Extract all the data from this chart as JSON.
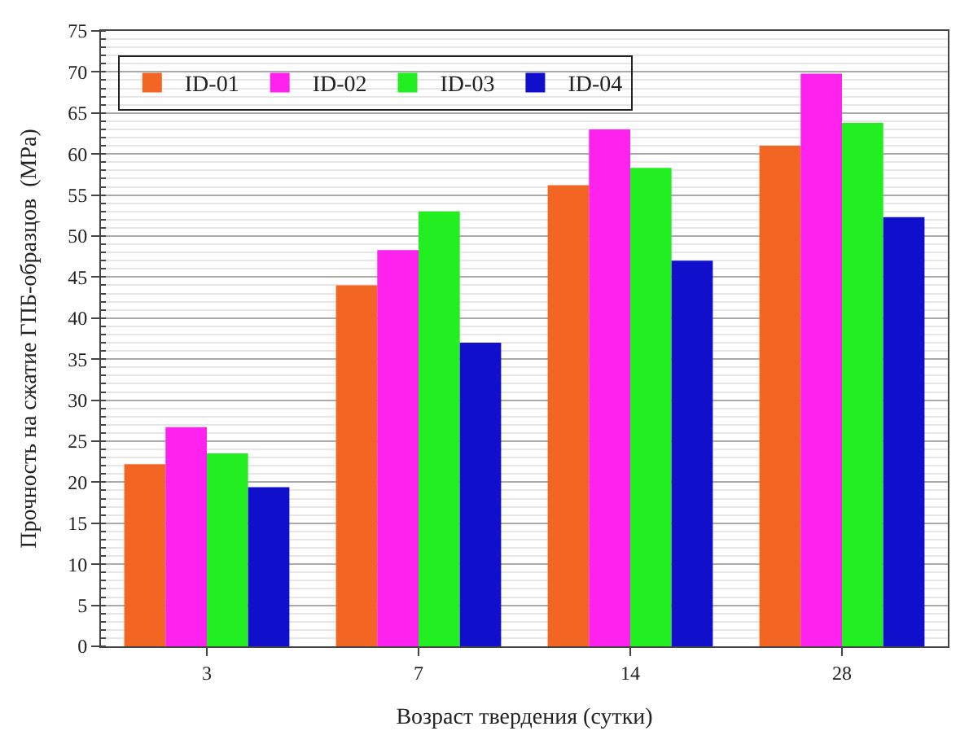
{
  "chart_data": {
    "type": "bar",
    "xlabel": "Возраст твердения (сутки)",
    "ylabel": "Прочность на сжатие ГПБ-образцов  (MPa)",
    "categories": [
      "3",
      "7",
      "14",
      "28"
    ],
    "series": [
      {
        "name": "ID-01",
        "color": "#f26522",
        "values": [
          22.2,
          44,
          56.2,
          61
        ]
      },
      {
        "name": "ID-02",
        "color": "#ff22ee",
        "values": [
          26.7,
          48.3,
          63,
          69.8
        ]
      },
      {
        "name": "ID-03",
        "color": "#22ee22",
        "values": [
          23.5,
          53,
          58.3,
          63.8
        ]
      },
      {
        "name": "ID-04",
        "color": "#1010cc",
        "values": [
          19.4,
          37,
          47,
          52.3
        ]
      }
    ],
    "ylim": [
      0,
      75
    ],
    "yticks": [
      0,
      5,
      10,
      15,
      20,
      25,
      30,
      35,
      40,
      45,
      50,
      55,
      60,
      65,
      70,
      75
    ],
    "grid": "y",
    "legend": "top left"
  }
}
